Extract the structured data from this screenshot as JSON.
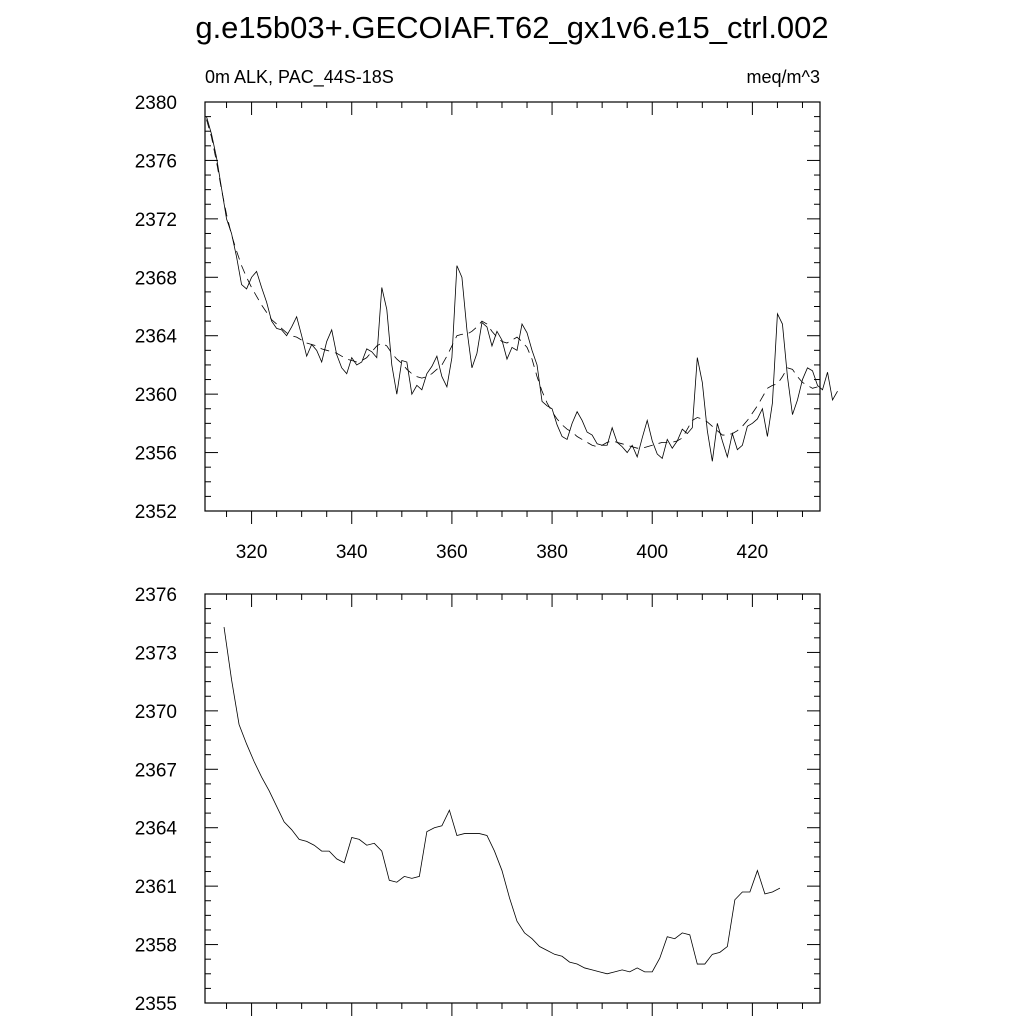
{
  "title": "g.e15b03+.GECOIAF.T62_gx1v6.e15_ctrl.002",
  "chart_data": [
    {
      "type": "line",
      "left_label": "0m ALK, PAC_44S-18S",
      "right_label": "meq/m^3",
      "xlim": [
        310.7,
        433.5
      ],
      "ylim": [
        2352,
        2380
      ],
      "x_ticks": [
        320,
        340,
        360,
        380,
        400,
        420
      ],
      "y_ticks": [
        2352,
        2356,
        2360,
        2364,
        2368,
        2372,
        2376,
        2380
      ],
      "x_tick_labels_visible": true,
      "grid": false,
      "series": [
        {
          "style": "solid",
          "x_start": 311,
          "x_step": 1,
          "values": [
            2379.0,
            2377.8,
            2376.2,
            2374.1,
            2372.0,
            2371.0,
            2369.4,
            2367.5,
            2367.2,
            2368.0,
            2368.4,
            2367.3,
            2366.3,
            2365.0,
            2364.5,
            2364.4,
            2364.0,
            2364.6,
            2365.3,
            2364.0,
            2362.6,
            2363.4,
            2363.0,
            2362.2,
            2363.6,
            2364.4,
            2362.7,
            2361.8,
            2361.4,
            2362.5,
            2362.0,
            2362.2,
            2363.1,
            2362.9,
            2362.5,
            2367.3,
            2365.8,
            2362.0,
            2360.0,
            2362.3,
            2362.2,
            2360.0,
            2360.6,
            2360.3,
            2361.4,
            2361.9,
            2362.6,
            2361.2,
            2360.5,
            2362.5,
            2368.8,
            2368.0,
            2364.4,
            2361.8,
            2362.8,
            2364.9,
            2364.6,
            2363.3,
            2364.3,
            2363.7,
            2362.4,
            2363.2,
            2363.0,
            2364.8,
            2364.2,
            2363.0,
            2362.0,
            2359.5,
            2359.2,
            2359.0,
            2357.9,
            2357.1,
            2356.9,
            2358.0,
            2358.8,
            2358.2,
            2357.4,
            2357.2,
            2356.6,
            2356.5,
            2356.5,
            2357.7,
            2356.7,
            2356.4,
            2356.0,
            2356.5,
            2355.7,
            2357.0,
            2358.2,
            2356.8,
            2355.9,
            2355.6,
            2356.9,
            2356.3,
            2356.8,
            2357.6,
            2357.3,
            2357.7,
            2362.5,
            2360.8,
            2357.5,
            2355.4,
            2358.0,
            2356.8,
            2355.7,
            2357.3,
            2356.2,
            2356.5,
            2357.8,
            2358.0,
            2358.3,
            2359.0,
            2357.1,
            2359.4,
            2365.5,
            2364.8,
            2361.2,
            2358.6,
            2359.6,
            2361.0,
            2361.8,
            2361.6,
            2360.6,
            2360.3,
            2361.5,
            2359.6,
            2360.2
          ]
        },
        {
          "style": "dashed",
          "x_start": 311,
          "x_step": 1,
          "values": [
            2378.8,
            2377.6,
            2375.9,
            2374.0,
            2372.3,
            2370.9,
            2369.8,
            2368.8,
            2368.0,
            2367.3,
            2366.7,
            2366.1,
            2365.6,
            2365.1,
            2364.8,
            2364.5,
            2364.2,
            2364.0,
            2363.9,
            2363.7,
            2363.5,
            2363.4,
            2363.3,
            2363.1,
            2363.0,
            2362.9,
            2362.8,
            2362.6,
            2362.4,
            2362.3,
            2362.2,
            2362.3,
            2362.5,
            2362.9,
            2363.3,
            2363.5,
            2363.3,
            2362.8,
            2362.4,
            2362.1,
            2361.7,
            2361.4,
            2361.2,
            2361.1,
            2361.2,
            2361.4,
            2361.7,
            2362.0,
            2362.6,
            2363.3,
            2364.0,
            2364.1,
            2364.1,
            2364.3,
            2364.6,
            2365.0,
            2364.8,
            2364.3,
            2363.9,
            2363.6,
            2363.5,
            2363.7,
            2363.9,
            2363.6,
            2363.2,
            2362.4,
            2361.2,
            2360.2,
            2359.4,
            2358.8,
            2358.3,
            2357.9,
            2357.6,
            2357.4,
            2357.1,
            2356.9,
            2356.7,
            2356.5,
            2356.4,
            2356.5,
            2356.7,
            2356.8,
            2356.7,
            2356.6,
            2356.5,
            2356.4,
            2356.3,
            2356.3,
            2356.4,
            2356.5,
            2356.6,
            2356.7,
            2356.7,
            2356.7,
            2356.8,
            2357.0,
            2357.6,
            2358.2,
            2358.4,
            2358.3,
            2358.1,
            2357.8,
            2357.5,
            2357.2,
            2357.2,
            2357.3,
            2357.5,
            2357.8,
            2358.2,
            2358.7,
            2359.2,
            2359.8,
            2360.4,
            2360.6,
            2360.7,
            2361.2,
            2361.8,
            2361.7,
            2361.2,
            2360.8,
            2360.6,
            2360.4,
            2360.5
          ]
        }
      ]
    },
    {
      "type": "line",
      "xlim": [
        310.7,
        433.5
      ],
      "ylim": [
        2355,
        2376
      ],
      "x_ticks": [
        320,
        340,
        360,
        380,
        400,
        420
      ],
      "y_ticks": [
        2355,
        2358,
        2361,
        2364,
        2367,
        2370,
        2373,
        2376
      ],
      "x_tick_labels_visible": false,
      "grid": false,
      "series": [
        {
          "style": "solid",
          "x_start": 314.5,
          "x_step": 1.5,
          "values": [
            2374.3,
            2371.6,
            2369.3,
            2368.3,
            2367.4,
            2366.6,
            2365.9,
            2365.1,
            2364.3,
            2363.9,
            2363.4,
            2363.3,
            2363.1,
            2362.8,
            2362.8,
            2362.4,
            2362.2,
            2363.5,
            2363.4,
            2363.1,
            2363.2,
            2362.8,
            2361.3,
            2361.2,
            2361.5,
            2361.4,
            2361.5,
            2363.8,
            2364.0,
            2364.1,
            2364.9,
            2363.6,
            2363.7,
            2363.7,
            2363.7,
            2363.6,
            2362.8,
            2361.8,
            2360.4,
            2359.2,
            2358.6,
            2358.3,
            2357.9,
            2357.7,
            2357.5,
            2357.4,
            2357.1,
            2357.0,
            2356.8,
            2356.7,
            2356.6,
            2356.5,
            2356.6,
            2356.7,
            2356.6,
            2356.8,
            2356.6,
            2356.6,
            2357.3,
            2358.4,
            2358.3,
            2358.6,
            2358.5,
            2357.0,
            2357.0,
            2357.5,
            2357.6,
            2357.9,
            2360.3,
            2360.7,
            2360.7,
            2361.8,
            2360.6,
            2360.7,
            2360.9
          ]
        }
      ]
    }
  ]
}
